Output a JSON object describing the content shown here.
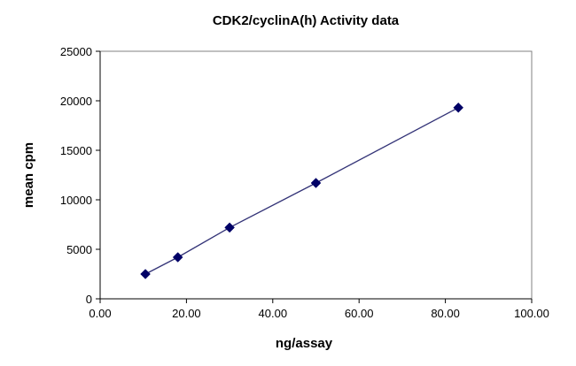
{
  "chart_data": {
    "type": "scatter",
    "title": "CDK2/cyclinA(h) Activity data",
    "xlabel": "ng/assay",
    "ylabel": "mean cpm",
    "xlim": [
      0,
      100
    ],
    "ylim": [
      0,
      25000
    ],
    "x_ticks": [
      "0.00",
      "20.00",
      "40.00",
      "60.00",
      "80.00",
      "100.00"
    ],
    "y_ticks": [
      "0",
      "5000",
      "10000",
      "15000",
      "20000",
      "25000"
    ],
    "grid": false,
    "legend": false,
    "series": [
      {
        "x": [
          10.5,
          18,
          30,
          50,
          83
        ],
        "y": [
          2500,
          4200,
          7200,
          11700,
          19300
        ],
        "marker": "diamond",
        "line": "straight",
        "color": "#000066",
        "line_color": "#333377"
      }
    ]
  }
}
